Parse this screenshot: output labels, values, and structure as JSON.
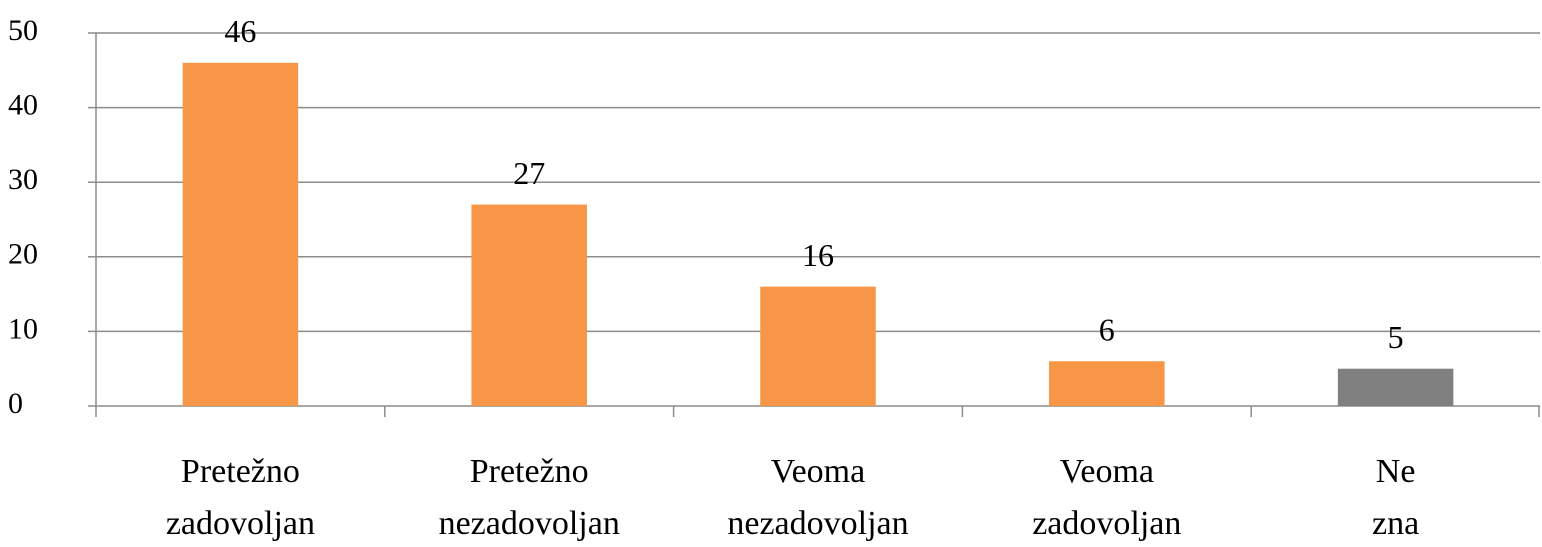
{
  "chart_data": {
    "type": "bar",
    "categories": [
      "Pretežno zadovoljan",
      "Pretežno nezadovoljan",
      "Veoma nezadovoljan",
      "Veoma zadovoljan",
      "Ne zna"
    ],
    "values": [
      46,
      27,
      16,
      6,
      5
    ],
    "colors": [
      "#f79646",
      "#f79646",
      "#f79646",
      "#f79646",
      "#808080"
    ],
    "ylim": [
      0,
      50
    ],
    "yticks": [
      0,
      10,
      20,
      30,
      40,
      50
    ],
    "grid": true
  }
}
